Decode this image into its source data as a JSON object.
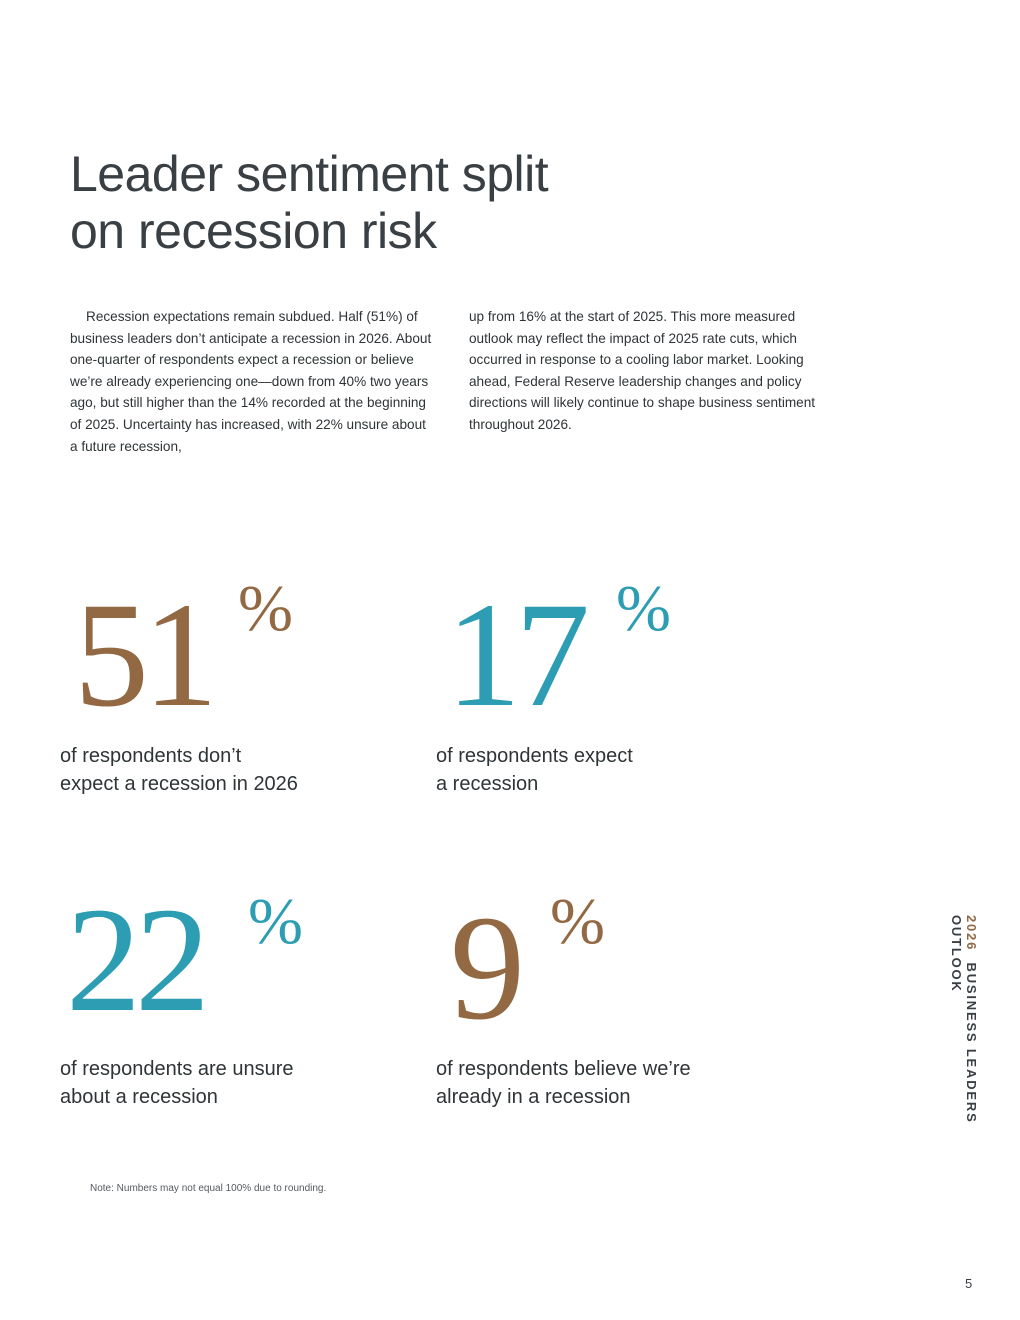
{
  "title": {
    "line1": "Leader sentiment split",
    "line2": "on recession risk"
  },
  "body": {
    "col1": "Recession expectations remain subdued. Half (51%) of business leaders don’t anticipate a recession in 2026. About one-quarter of respondents expect a recession or believe we’re already experiencing one—down from 40% two years ago, but still higher than the 14% recorded at the beginning of 2025. Uncertainty has increased, with 22% unsure about a future recession,",
    "col2": "up from 16% at the start of 2025. This more measured outlook may reflect the impact of 2025 rate cuts, which occurred in response to a cooling labor market. Looking ahead, Federal Reserve leadership changes and policy directions will likely continue to shape business sentiment throughout 2026."
  },
  "stats": [
    {
      "value": "51",
      "unit": "%",
      "label_line1": "of respondents don’t",
      "label_line2": "expect a recession in 2026",
      "color": "#936944"
    },
    {
      "value": "17",
      "unit": "%",
      "label_line1": "of respondents expect",
      "label_line2": "a recession",
      "color": "#2c9db3"
    },
    {
      "value": "22",
      "unit": "%",
      "label_line1": "of respondents are unsure",
      "label_line2": "about a recession",
      "color": "#2c9db3"
    },
    {
      "value": "9",
      "unit": "%",
      "label_line1": "of respondents believe we’re",
      "label_line2": "already in a recession",
      "color": "#936944"
    }
  ],
  "note": "Note: Numbers may not equal 100% due to rounding.",
  "side_title": {
    "year": "2026",
    "text": "BUSINESS LEADERS OUTLOOK"
  },
  "page_number": "5"
}
